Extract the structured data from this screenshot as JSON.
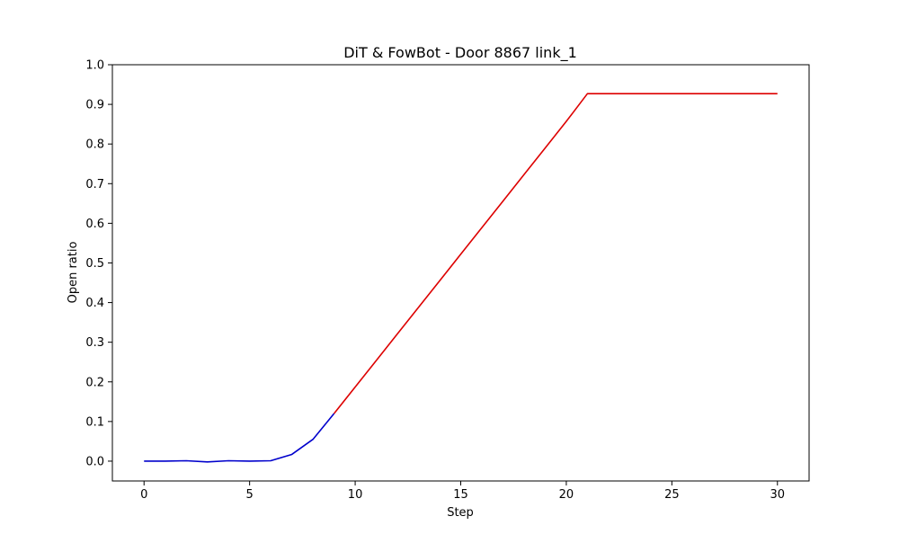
{
  "chart_data": {
    "type": "line",
    "title": "DiT & FowBot - Door 8867 link_1",
    "xlabel": "Step",
    "ylabel": "Open ratio",
    "xlim": [
      -1.5,
      31.5
    ],
    "ylim": [
      -0.05,
      1.0
    ],
    "xticks": [
      0,
      5,
      10,
      15,
      20,
      25,
      30
    ],
    "yticks": [
      0.0,
      0.1,
      0.2,
      0.3,
      0.4,
      0.5,
      0.6,
      0.7,
      0.8,
      0.9,
      1.0
    ],
    "grid": false,
    "series": [
      {
        "color": "#0000cc",
        "x": [
          0,
          1,
          2,
          3,
          4,
          5,
          6,
          7,
          8,
          9
        ],
        "y": [
          0.0,
          0.0,
          0.001,
          -0.002,
          0.001,
          0.0,
          0.001,
          0.017,
          0.055,
          0.12
        ]
      },
      {
        "color": "#dd0000",
        "x": [
          9,
          10,
          11,
          12,
          13,
          14,
          15,
          16,
          17,
          18,
          19,
          20,
          21,
          22,
          23,
          24,
          25,
          26,
          27,
          28,
          29,
          30
        ],
        "y": [
          0.12,
          0.187,
          0.254,
          0.321,
          0.388,
          0.455,
          0.522,
          0.589,
          0.656,
          0.723,
          0.79,
          0.857,
          0.927,
          0.927,
          0.927,
          0.927,
          0.927,
          0.927,
          0.927,
          0.927,
          0.927,
          0.927
        ]
      }
    ]
  }
}
